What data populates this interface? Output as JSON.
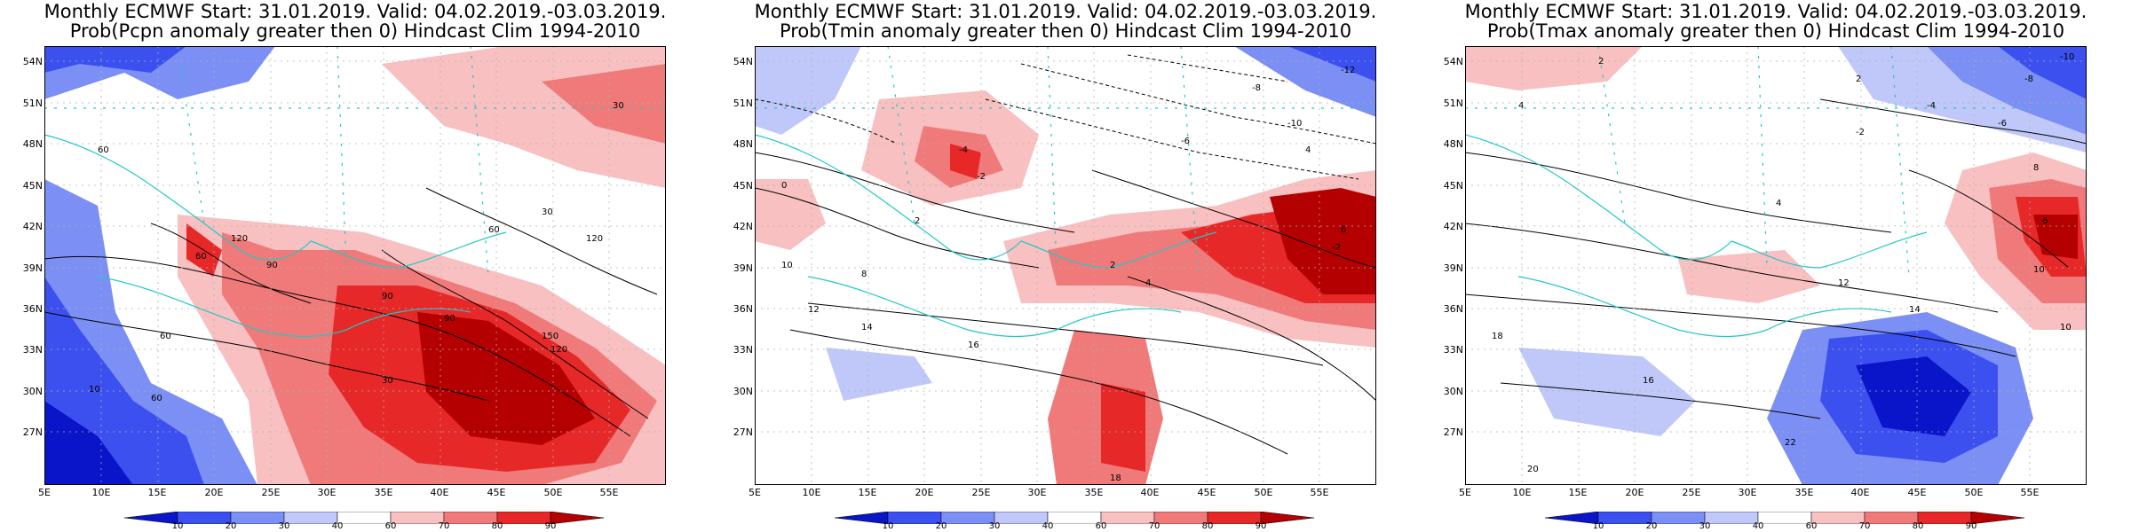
{
  "panels": [
    {
      "title_line1": "Monthly ECMWF Start: 31.01.2019. Valid: 04.02.2019.-03.03.2019.",
      "title_line2": "Prob(Pcpn anomaly greater then 0) Hindcast Clim 1994-2010",
      "contour_labels": [
        "30",
        "60",
        "90",
        "120",
        "150",
        "60",
        "90",
        "120",
        "30",
        "60",
        "10",
        "90",
        "60",
        "120",
        "30",
        "60"
      ]
    },
    {
      "title_line1": "Monthly ECMWF Start: 31.01.2019. Valid: 04.02.2019.-03.03.2019.",
      "title_line2": "Prob(Tmin anomaly greater then 0) Hindcast Clim 1994-2010",
      "contour_labels": [
        "-12",
        "-8",
        "-10",
        "-6",
        "-4",
        "-2",
        "0",
        "2",
        "4",
        "6",
        "8",
        "10",
        "12",
        "14",
        "16",
        "18",
        "-2",
        "4",
        "2"
      ]
    },
    {
      "title_line1": "Monthly ECMWF Start: 31.01.2019. Valid: 04.02.2019.-03.03.2019.",
      "title_line2": "Prob(Tmax anomaly greater then 0) Hindcast Clim 1994-2010",
      "contour_labels": [
        "-10",
        "-8",
        "-6",
        "-4",
        "-2",
        "2",
        "4",
        "6",
        "8",
        "10",
        "12",
        "14",
        "16",
        "18",
        "20",
        "22",
        "4",
        "2",
        "10"
      ]
    }
  ],
  "axes": {
    "lat_labels": [
      "54N",
      "51N",
      "48N",
      "45N",
      "42N",
      "39N",
      "36N",
      "33N",
      "30N",
      "27N"
    ],
    "lon_labels": [
      "5E",
      "10E",
      "15E",
      "20E",
      "25E",
      "30E",
      "35E",
      "40E",
      "45E",
      "50E",
      "55E"
    ]
  },
  "colorbar": {
    "labels": [
      "10",
      "20",
      "30",
      "40",
      "60",
      "70",
      "80",
      "90"
    ],
    "colors": [
      "#0a14c8",
      "#3c50f0",
      "#7b8ff5",
      "#bfc8f8",
      "#ffffff",
      "#f8c0c0",
      "#f07a7a",
      "#e62828",
      "#b40000"
    ]
  }
}
